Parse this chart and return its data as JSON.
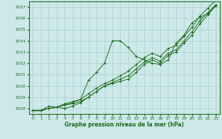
{
  "xlabel": "Graphe pression niveau de la mer (hPa)",
  "ylabel": "",
  "bg_color": "#cce8e8",
  "grid_color": "#aacccc",
  "line_color": "#1a6b1a",
  "ylim": [
    1027.5,
    1037.5
  ],
  "xlim": [
    -0.5,
    23.5
  ],
  "yticks": [
    1028,
    1029,
    1030,
    1031,
    1032,
    1033,
    1034,
    1035,
    1036,
    1037
  ],
  "xticks": [
    0,
    1,
    2,
    3,
    4,
    5,
    6,
    7,
    8,
    9,
    10,
    11,
    12,
    13,
    14,
    15,
    16,
    17,
    18,
    19,
    20,
    21,
    22,
    23
  ],
  "series": [
    [
      1027.8,
      1027.8,
      1028.0,
      1028.1,
      1028.0,
      1028.2,
      1028.5,
      1029.0,
      1029.5,
      1030.0,
      1030.2,
      1030.4,
      1030.6,
      1031.2,
      1031.9,
      1032.3,
      1032.0,
      1032.7,
      1033.0,
      1033.8,
      1034.5,
      1035.5,
      1036.3,
      1037.1
    ],
    [
      1027.8,
      1027.8,
      1028.0,
      1028.1,
      1028.3,
      1028.4,
      1028.6,
      1029.0,
      1029.5,
      1030.0,
      1030.3,
      1030.6,
      1030.9,
      1031.5,
      1032.1,
      1032.5,
      1032.2,
      1032.9,
      1033.2,
      1034.0,
      1034.8,
      1035.8,
      1036.5,
      1037.2
    ],
    [
      1027.8,
      1027.8,
      1028.0,
      1028.1,
      1028.3,
      1028.5,
      1028.8,
      1030.5,
      1031.2,
      1032.0,
      1034.0,
      1034.0,
      1033.4,
      1032.6,
      1032.3,
      1032.0,
      1031.9,
      1032.3,
      1033.8,
      1034.5,
      1035.6,
      1036.1,
      1036.4,
      1037.1
    ],
    [
      1027.8,
      1027.8,
      1028.2,
      1028.1,
      1028.4,
      1028.6,
      1028.8,
      1029.3,
      1029.8,
      1030.2,
      1030.5,
      1030.9,
      1031.3,
      1031.9,
      1032.5,
      1032.9,
      1032.6,
      1033.3,
      1033.6,
      1034.4,
      1035.2,
      1036.2,
      1036.9,
      1037.6
    ]
  ]
}
